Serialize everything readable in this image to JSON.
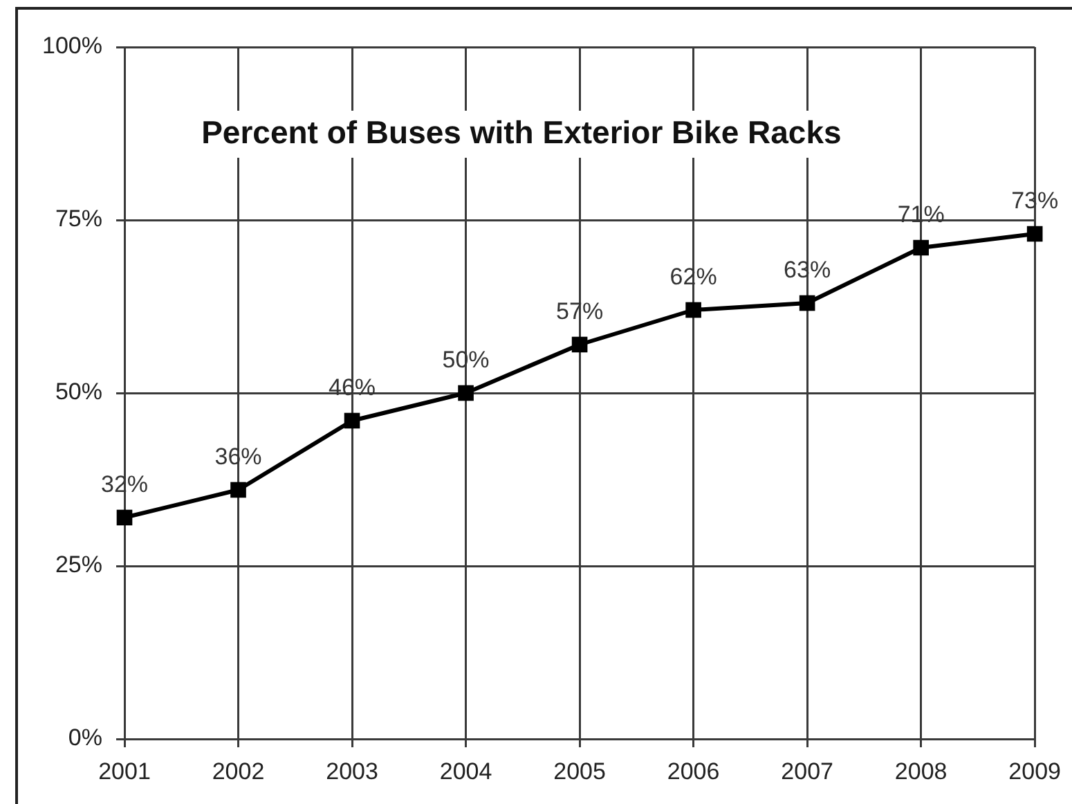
{
  "chart_data": {
    "type": "line",
    "title": "Percent of Buses with Exterior Bike Racks",
    "categories": [
      "2001",
      "2002",
      "2003",
      "2004",
      "2005",
      "2006",
      "2007",
      "2008",
      "2009"
    ],
    "values": [
      32,
      36,
      46,
      50,
      57,
      62,
      63,
      71,
      73
    ],
    "color": "#000000",
    "value_labels": [
      "32%",
      "36%",
      "46%",
      "50%",
      "57%",
      "62%",
      "63%",
      "71%",
      "73%"
    ],
    "ylim": [
      0,
      100
    ],
    "yticks": [
      {
        "value": 0,
        "label": "0%"
      },
      {
        "value": 25,
        "label": "25%"
      },
      {
        "value": 50,
        "label": "50%"
      },
      {
        "value": 75,
        "label": "75%"
      },
      {
        "value": 100,
        "label": "100%"
      }
    ],
    "grid": true,
    "marker": "square"
  }
}
